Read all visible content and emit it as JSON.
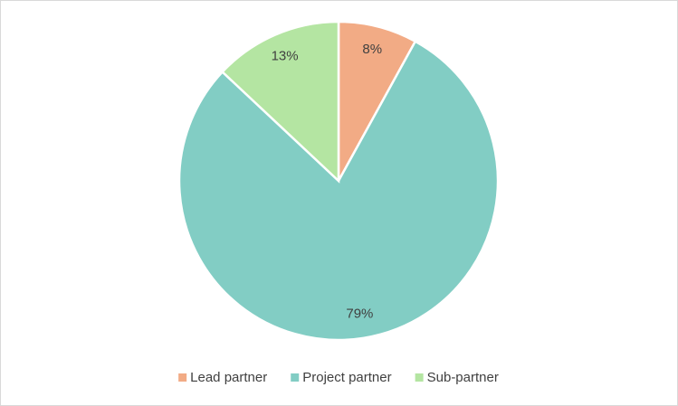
{
  "chart_data": {
    "type": "pie",
    "categories": [
      "Lead partner",
      "Project partner",
      "Sub-partner"
    ],
    "values": [
      8,
      79,
      13
    ],
    "value_labels": [
      "8%",
      "79%",
      "13%"
    ],
    "colors": [
      "#f2ab85",
      "#82cdc4",
      "#b4e5a2"
    ],
    "legend": "bottom"
  }
}
